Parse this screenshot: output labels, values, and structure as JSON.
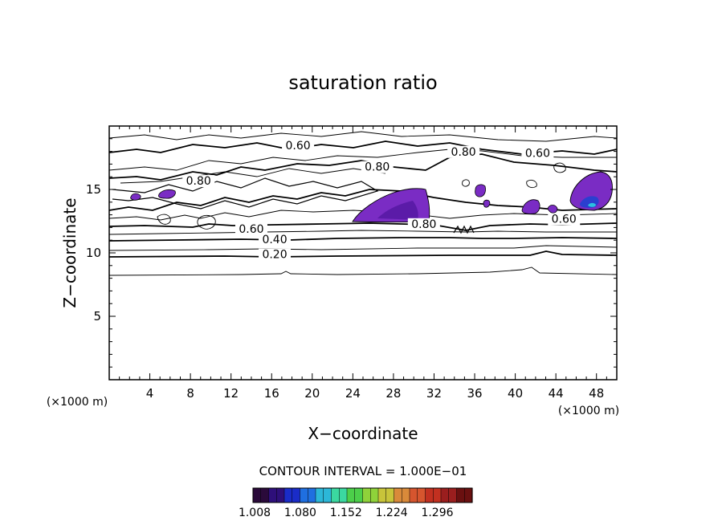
{
  "chart_data": {
    "type": "heatmap",
    "title": "saturation ratio",
    "xlabel": "X−coordinate",
    "ylabel": "Z−coordinate",
    "x_unit": "(×1000 m)",
    "z_unit": "(×1000 m)",
    "xlim": [
      0,
      50
    ],
    "ylim": [
      0,
      20
    ],
    "x_ticks": [
      4,
      8,
      12,
      16,
      20,
      24,
      28,
      32,
      36,
      40,
      44,
      48
    ],
    "y_ticks": [
      5,
      10,
      15
    ],
    "contour_interval_text": "CONTOUR INTERVAL = 1.000E−01",
    "colorbar": {
      "tick_labels": [
        "1.008",
        "1.080",
        "1.152",
        "1.224",
        "1.296"
      ],
      "colors": [
        "#2a0a3a",
        "#2e0f7a",
        "#1a2cc8",
        "#1f6fe0",
        "#2cb7d8",
        "#3bd8a0",
        "#4ccf4a",
        "#8fd23a",
        "#c8c43a",
        "#d98a3a",
        "#d6552e",
        "#c23020",
        "#9a1e1e",
        "#6a1010"
      ]
    },
    "contour_labels": [
      {
        "text": "0.60",
        "x": 18.6,
        "z": 18.3
      },
      {
        "text": "0.80",
        "x": 34.9,
        "z": 17.8
      },
      {
        "text": "0.60",
        "x": 42.2,
        "z": 17.7
      },
      {
        "text": "0.80",
        "x": 26.4,
        "z": 16.6
      },
      {
        "text": "0.80",
        "x": 8.8,
        "z": 15.5
      },
      {
        "text": "0.60",
        "x": 44.8,
        "z": 12.5
      },
      {
        "text": "0.80",
        "x": 31.0,
        "z": 12.1
      },
      {
        "text": "0.60",
        "x": 14.0,
        "z": 11.7
      },
      {
        "text": "0.40",
        "x": 16.3,
        "z": 10.9
      },
      {
        "text": "0.20",
        "x": 16.3,
        "z": 9.7
      }
    ],
    "supersaturated_regions": [
      {
        "x": [
          2.0,
          2.8
        ],
        "z": [
          14.0,
          14.6
        ],
        "max": 1.05
      },
      {
        "x": [
          4.8,
          6.4
        ],
        "z": [
          14.1,
          14.9
        ],
        "max": 1.05
      },
      {
        "x": [
          24.0,
          31.5
        ],
        "z": [
          12.5,
          15.4
        ],
        "max": 1.08
      },
      {
        "x": [
          36.5,
          37.5
        ],
        "z": [
          14.1,
          15.5
        ],
        "max": 1.04
      },
      {
        "x": [
          37.6,
          38.1
        ],
        "z": [
          13.2,
          14.0
        ],
        "max": 1.03
      },
      {
        "x": [
          40.8,
          42.5
        ],
        "z": [
          13.0,
          14.5
        ],
        "max": 1.05
      },
      {
        "x": [
          43.5,
          44.5
        ],
        "z": [
          13.0,
          14.2
        ],
        "max": 1.05
      },
      {
        "x": [
          45.5,
          50.0
        ],
        "z": [
          13.5,
          16.6
        ],
        "max": 1.15
      }
    ]
  }
}
